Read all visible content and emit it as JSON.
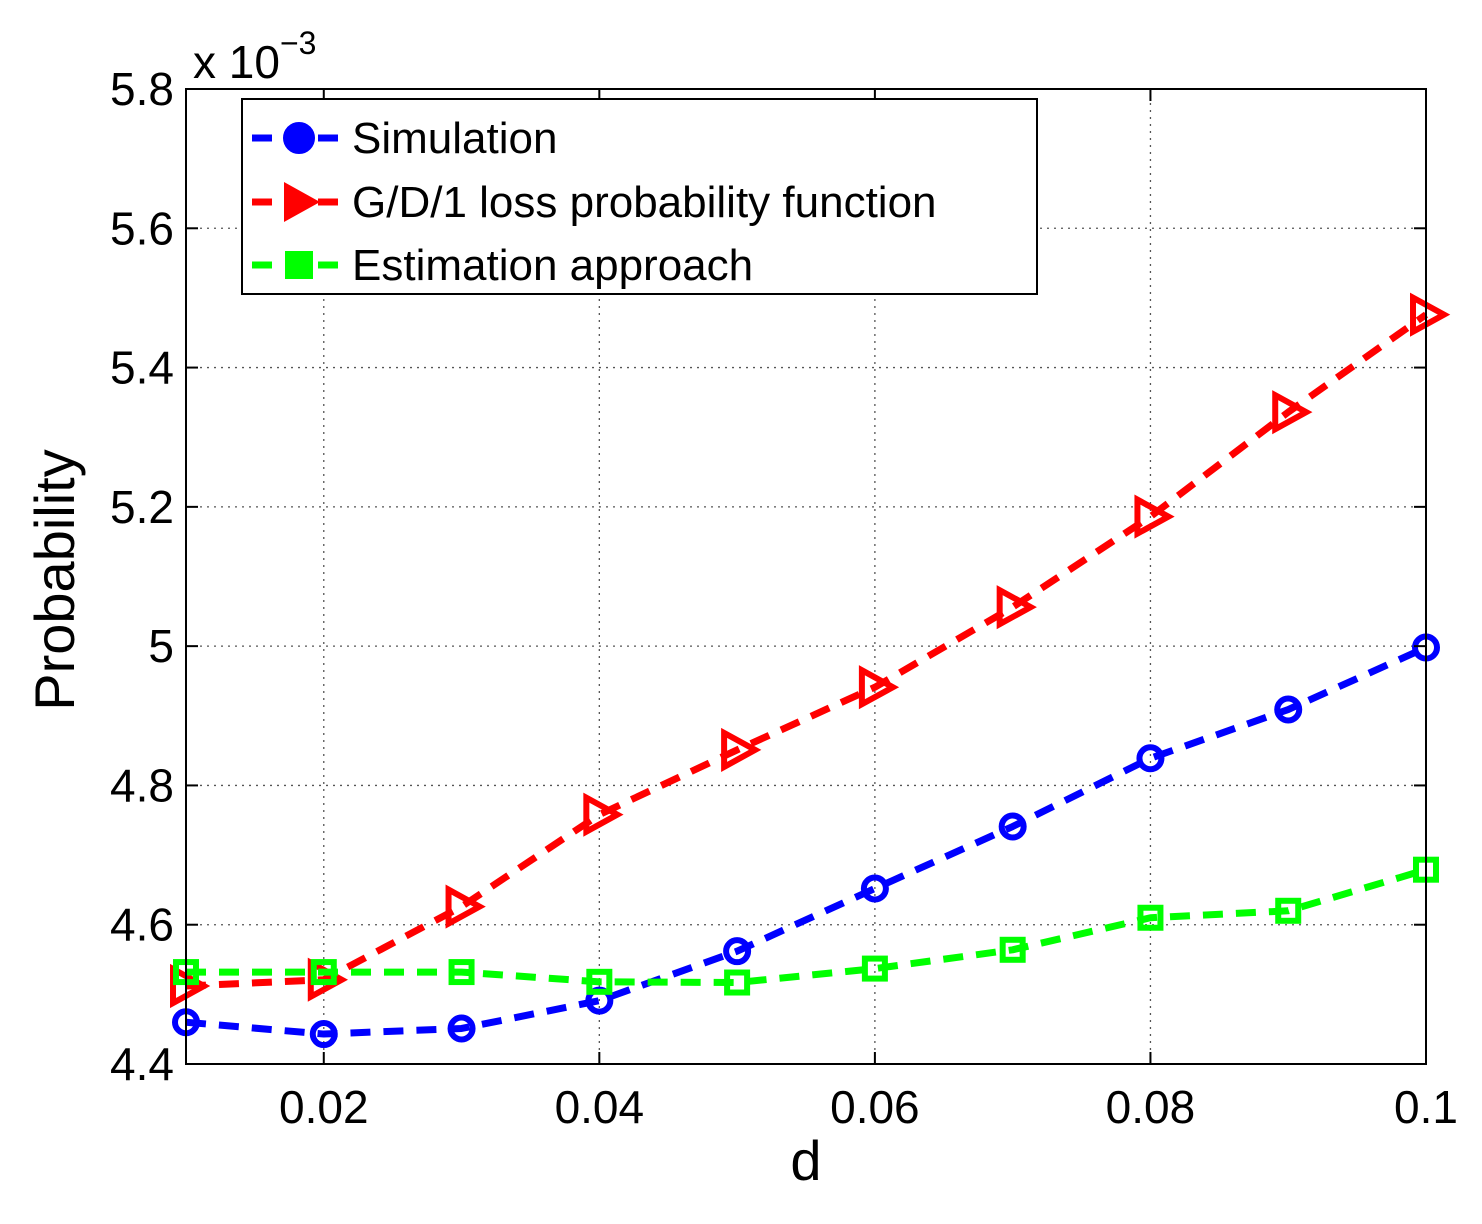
{
  "chart_data": {
    "type": "line",
    "title": "",
    "xlabel": "d",
    "ylabel": "Probability",
    "y_scale_label": {
      "prefix": "x 10",
      "exponent": "−3"
    },
    "xlim": [
      0.01,
      0.1
    ],
    "ylim": [
      4.4,
      5.8
    ],
    "grid": true,
    "legend_position": "top-left",
    "x_ticks": [
      0.02,
      0.04,
      0.06,
      0.08,
      0.1
    ],
    "x_tick_labels": [
      "0.02",
      "0.04",
      "0.06",
      "0.08",
      "0.1"
    ],
    "y_ticks": [
      4.4,
      4.6,
      4.8,
      5.0,
      5.2,
      5.4,
      5.6,
      5.8
    ],
    "y_tick_labels": [
      "4.4",
      "4.6",
      "4.8",
      "5",
      "5.2",
      "5.4",
      "5.6",
      "5.8"
    ],
    "x": [
      0.01,
      0.02,
      0.03,
      0.04,
      0.05,
      0.06,
      0.07,
      0.08,
      0.09,
      0.1
    ],
    "series": [
      {
        "name": "Simulation",
        "color": "#0000ff",
        "marker": "circle",
        "values": [
          4.46,
          4.443,
          4.451,
          4.491,
          4.562,
          4.652,
          4.741,
          4.839,
          4.909,
          4.998
        ]
      },
      {
        "name": "G/D/1 loss probability function",
        "color": "#ff0000",
        "marker": "triangle-right",
        "values": [
          4.512,
          4.521,
          4.626,
          4.758,
          4.851,
          4.941,
          5.056,
          5.186,
          5.336,
          5.476
        ]
      },
      {
        "name": "Estimation approach",
        "color": "#00ff00",
        "marker": "square",
        "values": [
          4.532,
          4.532,
          4.532,
          4.518,
          4.517,
          4.537,
          4.564,
          4.61,
          4.62,
          4.679
        ]
      }
    ]
  }
}
